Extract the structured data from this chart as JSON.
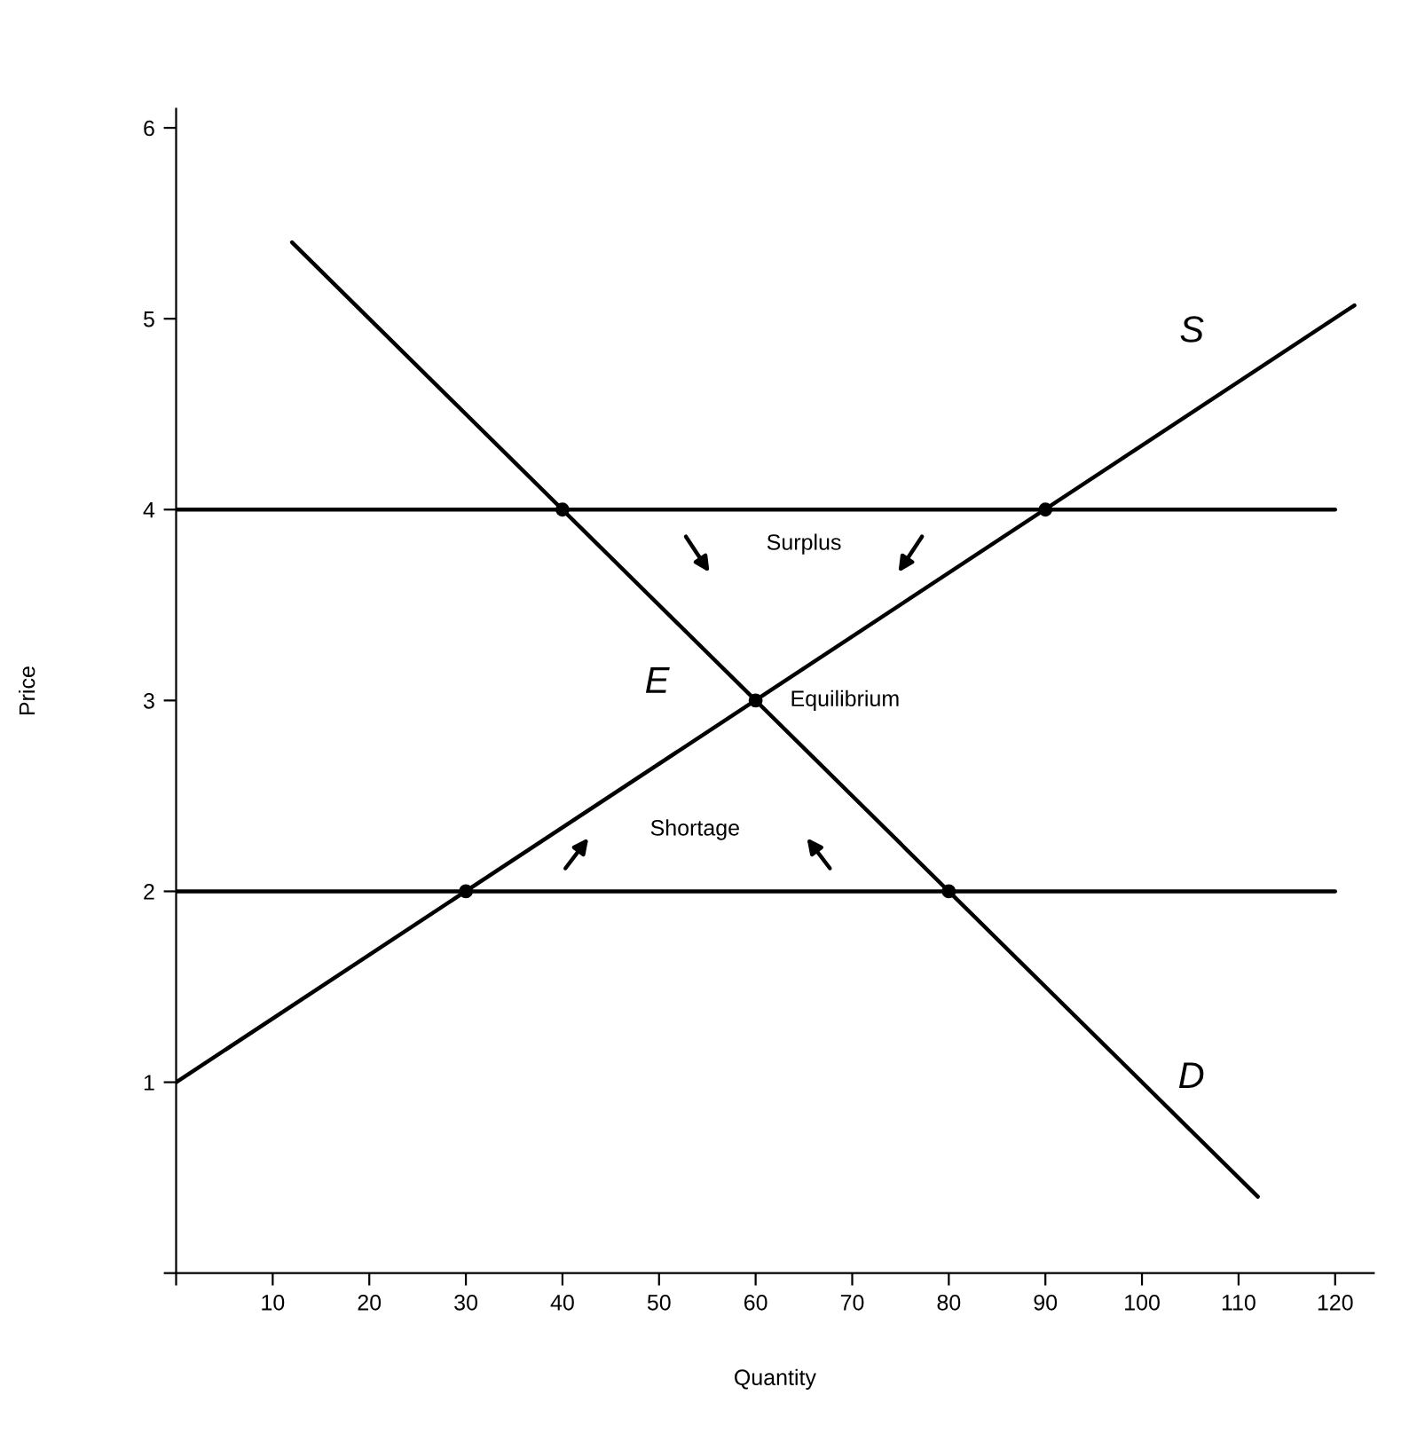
{
  "chart_data": {
    "type": "line",
    "xlabel": "Quantity",
    "ylabel": "Price",
    "xlim": [
      0,
      124
    ],
    "ylim": [
      0,
      6.1
    ],
    "xticks": [
      {
        "value": 0,
        "label": null
      },
      10,
      20,
      30,
      40,
      50,
      60,
      70,
      80,
      90,
      100,
      110,
      120
    ],
    "yticks": [
      {
        "value": 0,
        "label": null
      },
      1,
      2,
      3,
      4,
      5,
      6
    ],
    "grid": false,
    "marker": "none",
    "line_style": "solid",
    "series": [
      {
        "color": "#000000",
        "x": [
          0,
          122
        ],
        "values": [
          1,
          5.07
        ]
      },
      {
        "color": "#000000",
        "x": [
          12,
          112
        ],
        "values": [
          5.4,
          0.4
        ]
      },
      {
        "color": "#000000",
        "x": [
          0,
          120
        ],
        "values": [
          4,
          4
        ]
      },
      {
        "color": "#000000",
        "x": [
          0,
          120
        ],
        "values": [
          2,
          2
        ]
      },
      {
        "type": "scatter",
        "color": "#000000",
        "marker": "circle",
        "x": [
          40,
          90,
          60,
          30,
          80
        ],
        "values": [
          4,
          4,
          3,
          2,
          2
        ]
      }
    ],
    "annotations": [
      "S",
      "D",
      "E",
      "Equilibrium",
      "Surplus",
      "Shortage"
    ]
  }
}
